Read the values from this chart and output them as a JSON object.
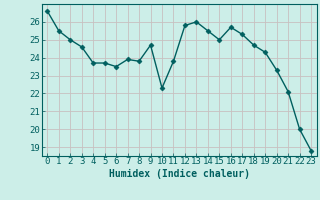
{
  "x": [
    0,
    1,
    2,
    3,
    4,
    5,
    6,
    7,
    8,
    9,
    10,
    11,
    12,
    13,
    14,
    15,
    16,
    17,
    18,
    19,
    20,
    21,
    22,
    23
  ],
  "y": [
    26.6,
    25.5,
    25.0,
    24.6,
    23.7,
    23.7,
    23.5,
    23.9,
    23.8,
    24.7,
    22.3,
    23.8,
    25.8,
    26.0,
    25.5,
    25.0,
    25.7,
    25.3,
    24.7,
    24.3,
    23.3,
    22.1,
    20.0,
    18.8
  ],
  "line_color": "#005f5f",
  "marker": "D",
  "markersize": 2.5,
  "linewidth": 1.0,
  "background_color": "#cceee8",
  "grid_color": "#c8c0c0",
  "xlabel": "Humidex (Indice chaleur)",
  "xlabel_fontsize": 7,
  "tick_fontsize": 6.5,
  "ylim": [
    18.5,
    27.0
  ],
  "yticks": [
    19,
    20,
    21,
    22,
    23,
    24,
    25,
    26
  ],
  "xlim": [
    -0.5,
    23.5
  ],
  "xticks": [
    0,
    1,
    2,
    3,
    4,
    5,
    6,
    7,
    8,
    9,
    10,
    11,
    12,
    13,
    14,
    15,
    16,
    17,
    18,
    19,
    20,
    21,
    22,
    23
  ]
}
